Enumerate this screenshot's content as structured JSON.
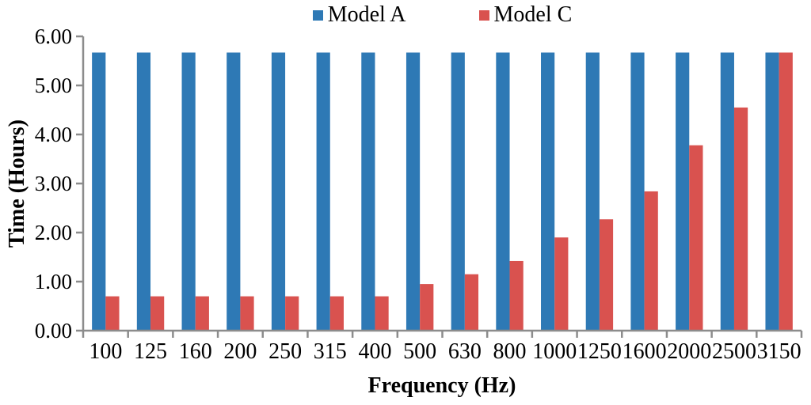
{
  "chart_data": {
    "type": "bar",
    "title": "",
    "xlabel": "Frequency (Hz)",
    "ylabel": "Time (Hours)",
    "categories": [
      "100",
      "125",
      "160",
      "200",
      "250",
      "315",
      "400",
      "500",
      "630",
      "800",
      "1000",
      "1250",
      "1600",
      "2000",
      "2500",
      "3150"
    ],
    "series": [
      {
        "name": "Model A",
        "color": "#2E79B5",
        "values": [
          5.67,
          5.67,
          5.67,
          5.67,
          5.67,
          5.67,
          5.67,
          5.67,
          5.67,
          5.67,
          5.67,
          5.67,
          5.67,
          5.67,
          5.67,
          5.67
        ]
      },
      {
        "name": "Model C",
        "color": "#D9524F",
        "values": [
          0.7,
          0.7,
          0.7,
          0.7,
          0.7,
          0.7,
          0.7,
          0.95,
          1.15,
          1.42,
          1.9,
          2.27,
          2.84,
          3.78,
          4.55,
          5.67
        ]
      }
    ],
    "ylim": [
      0,
      6
    ],
    "y_ticks": [
      "0.00",
      "1.00",
      "2.00",
      "3.00",
      "4.00",
      "5.00",
      "6.00"
    ],
    "legend_position": "top",
    "grid": false
  },
  "colors": {
    "axis": "#8C8C8C",
    "text": "#000000",
    "background": "#FFFFFF"
  }
}
